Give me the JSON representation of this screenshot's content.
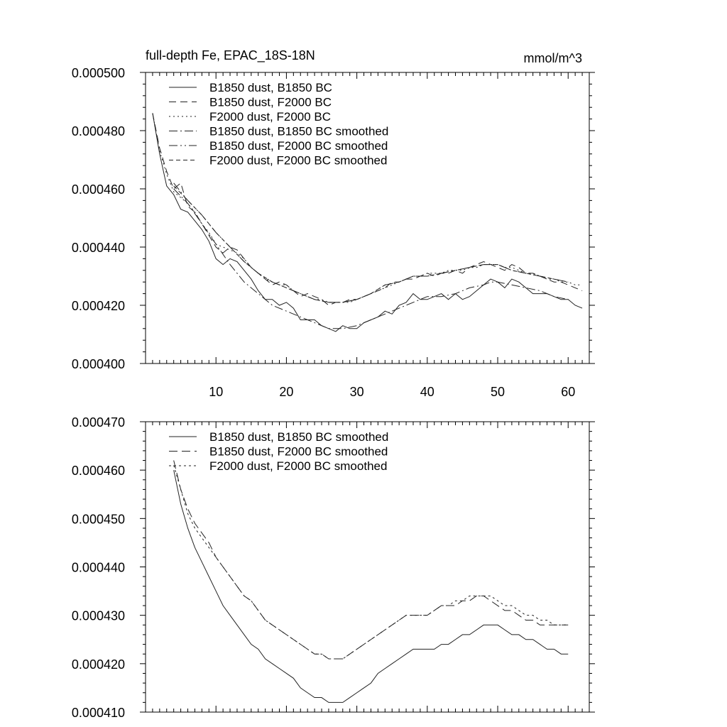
{
  "chart_data": [
    {
      "type": "line",
      "title": "full-depth Fe, EPAC_18S-18N",
      "units": "mmol/m^3",
      "xlim": [
        0,
        63
      ],
      "ylim": [
        0.0004,
        0.0005
      ],
      "x_ticks": [
        10,
        20,
        30,
        40,
        50,
        60
      ],
      "x_tick_labels": [
        "10",
        "20",
        "30",
        "40",
        "50",
        "60"
      ],
      "y_ticks": [
        0.0004,
        0.00042,
        0.00044,
        0.00046,
        0.00048,
        0.0005
      ],
      "y_tick_labels": [
        "0.000400",
        "0.000420",
        "0.000440",
        "0.000460",
        "0.000480",
        "0.000500"
      ],
      "legend_position": "top-left",
      "series": [
        {
          "name": "B1850 dust, B1850 BC",
          "dash": "",
          "x": [
            1,
            2,
            3,
            4,
            5,
            6,
            7,
            8,
            9,
            10,
            11,
            12,
            13,
            14,
            15,
            16,
            17,
            18,
            19,
            20,
            21,
            22,
            23,
            24,
            25,
            26,
            27,
            28,
            29,
            30,
            31,
            32,
            33,
            34,
            35,
            36,
            37,
            38,
            39,
            40,
            41,
            42,
            43,
            44,
            45,
            46,
            47,
            48,
            49,
            50,
            51,
            52,
            53,
            54,
            55,
            56,
            57,
            58,
            59,
            60,
            61,
            62
          ],
          "y": [
            0.000486,
            0.000472,
            0.000461,
            0.000458,
            0.000453,
            0.000452,
            0.000449,
            0.000446,
            0.000442,
            0.000436,
            0.000434,
            0.000436,
            0.000435,
            0.000432,
            0.000429,
            0.000425,
            0.000422,
            0.000422,
            0.00042,
            0.000421,
            0.000419,
            0.000415,
            0.000415,
            0.000415,
            0.000413,
            0.000412,
            0.000411,
            0.000413,
            0.000412,
            0.000412,
            0.000414,
            0.000415,
            0.000416,
            0.000418,
            0.000417,
            0.00042,
            0.000421,
            0.000424,
            0.000422,
            0.000422,
            0.000423,
            0.000424,
            0.000422,
            0.000424,
            0.000422,
            0.000423,
            0.000425,
            0.000427,
            0.000429,
            0.000428,
            0.000426,
            0.000429,
            0.000428,
            0.000426,
            0.000424,
            0.000424,
            0.000424,
            0.000423,
            0.000422,
            0.000422,
            0.00042,
            0.000419
          ]
        },
        {
          "name": "B1850 dust, F2000 BC",
          "dash": "10,6",
          "x": [
            1,
            2,
            3,
            4,
            5,
            6,
            7,
            8,
            9,
            10,
            11,
            12,
            13,
            14,
            15,
            16,
            17,
            18,
            19,
            20,
            21,
            22,
            23,
            24,
            25,
            26,
            27,
            28,
            29,
            30,
            31,
            32,
            33,
            34,
            35,
            36,
            37,
            38,
            39,
            40,
            41,
            42,
            43,
            44,
            45,
            46,
            47,
            48,
            49,
            50,
            51,
            52,
            53,
            54,
            55,
            56,
            57,
            58,
            59,
            60,
            61,
            62
          ],
          "y": [
            0.000486,
            0.000474,
            0.000466,
            0.00046,
            0.000462,
            0.000454,
            0.000452,
            0.000448,
            0.000444,
            0.00044,
            0.000438,
            0.00044,
            0.000439,
            0.000436,
            0.000433,
            0.000431,
            0.000429,
            0.000427,
            0.000428,
            0.000427,
            0.000425,
            0.000423,
            0.000424,
            0.000423,
            0.000422,
            0.00042,
            0.000421,
            0.000421,
            0.000422,
            0.000422,
            0.000423,
            0.000424,
            0.000425,
            0.000426,
            0.000428,
            0.000428,
            0.000429,
            0.000429,
            0.00043,
            0.000431,
            0.00043,
            0.000431,
            0.000431,
            0.000432,
            0.000431,
            0.000433,
            0.000434,
            0.000435,
            0.000434,
            0.000433,
            0.000432,
            0.000434,
            0.000433,
            0.000431,
            0.000431,
            0.00043,
            0.000429,
            0.000428,
            0.000428,
            0.000427,
            0.000426,
            0.000425
          ]
        },
        {
          "name": "F2000 dust, F2000 BC",
          "dash": "2,4",
          "x": [
            1,
            2,
            3,
            4,
            5,
            6,
            7,
            8,
            9,
            10,
            11,
            12,
            13,
            14,
            15,
            16,
            17,
            18,
            19,
            20,
            21,
            22,
            23,
            24,
            25,
            26,
            27,
            28,
            29,
            30,
            31,
            32,
            33,
            34,
            35,
            36,
            37,
            38,
            39,
            40,
            41,
            42,
            43,
            44,
            45,
            46,
            47,
            48,
            49,
            50,
            51,
            52,
            53,
            54,
            55,
            56,
            57,
            58,
            59,
            60,
            61,
            62
          ],
          "y": [
            0.000486,
            0.000473,
            0.000465,
            0.000459,
            0.000457,
            0.000455,
            0.000452,
            0.000448,
            0.000445,
            0.000441,
            0.00044,
            0.000439,
            0.000438,
            0.000436,
            0.000433,
            0.000431,
            0.000429,
            0.000428,
            0.000427,
            0.000427,
            0.000425,
            0.000424,
            0.000423,
            0.000422,
            0.000422,
            0.000421,
            0.000421,
            0.000421,
            0.000421,
            0.000422,
            0.000423,
            0.000424,
            0.000425,
            0.000426,
            0.000427,
            0.000428,
            0.000429,
            0.00043,
            0.00043,
            0.000431,
            0.000431,
            0.000431,
            0.000432,
            0.000432,
            0.000432,
            0.000433,
            0.000433,
            0.000434,
            0.000434,
            0.000434,
            0.000433,
            0.000433,
            0.000432,
            0.000431,
            0.000431,
            0.00043,
            0.000429,
            0.000429,
            0.000428,
            0.000428,
            0.000427,
            0.000427
          ]
        },
        {
          "name": "B1850 dust, B1850 BC smoothed",
          "dash": "12,4,2,4",
          "x": [
            4,
            6,
            8,
            10,
            12,
            14,
            16,
            18,
            20,
            22,
            24,
            26,
            27,
            28,
            30,
            32,
            34,
            36,
            38,
            40,
            42,
            44,
            46,
            48,
            49,
            50,
            52,
            54,
            56,
            58,
            60
          ],
          "y": [
            0.00046,
            0.000455,
            0.000448,
            0.000441,
            0.000434,
            0.000428,
            0.000424,
            0.00042,
            0.000418,
            0.000416,
            0.000414,
            0.000412,
            0.000412,
            0.000412,
            0.000413,
            0.000415,
            0.000417,
            0.000419,
            0.000421,
            0.000423,
            0.000423,
            0.000424,
            0.000426,
            0.000427,
            0.000428,
            0.000428,
            0.000427,
            0.000426,
            0.000425,
            0.000423,
            0.000422
          ]
        },
        {
          "name": "B1850 dust, F2000 BC smoothed",
          "dash": "12,4,2,4,2,4",
          "x": [
            4,
            6,
            8,
            10,
            12,
            14,
            16,
            18,
            20,
            22,
            24,
            26,
            27,
            28,
            30,
            32,
            34,
            36,
            38,
            40,
            42,
            44,
            46,
            48,
            49,
            50,
            52,
            54,
            56,
            58,
            60
          ],
          "y": [
            0.000462,
            0.000456,
            0.000451,
            0.000445,
            0.00044,
            0.000435,
            0.000431,
            0.000428,
            0.000426,
            0.000424,
            0.000422,
            0.000421,
            0.000421,
            0.000421,
            0.000422,
            0.000424,
            0.000427,
            0.000428,
            0.00043,
            0.00043,
            0.000431,
            0.000432,
            0.000433,
            0.000434,
            0.000434,
            0.000434,
            0.000432,
            0.000431,
            0.00043,
            0.000429,
            0.000428
          ]
        },
        {
          "name": "F2000 dust, F2000 BC smoothed",
          "dash": "6,4",
          "x": [
            4,
            6,
            8,
            10,
            12,
            14,
            16,
            18,
            20,
            22,
            24,
            26,
            27,
            28,
            30,
            32,
            34,
            36,
            38,
            40,
            42,
            44,
            46,
            48,
            49,
            50,
            52,
            54,
            56,
            58,
            60
          ],
          "y": [
            0.000461,
            0.000456,
            0.000451,
            0.000445,
            0.00044,
            0.000435,
            0.000431,
            0.000428,
            0.000426,
            0.000424,
            0.000422,
            0.000421,
            0.000421,
            0.000421,
            0.000422,
            0.000424,
            0.000427,
            0.000428,
            0.00043,
            0.00043,
            0.000431,
            0.000432,
            0.000433,
            0.000434,
            0.000434,
            0.000434,
            0.000432,
            0.000431,
            0.00043,
            0.000429,
            0.000428
          ]
        }
      ]
    },
    {
      "type": "line",
      "title": "",
      "xlim": [
        0,
        63
      ],
      "ylim": [
        0.00041,
        0.00047
      ],
      "x_ticks": [
        10,
        20,
        30,
        40,
        50,
        60
      ],
      "y_ticks": [
        0.00041,
        0.00042,
        0.00043,
        0.00044,
        0.00045,
        0.00046,
        0.00047
      ],
      "y_tick_labels": [
        "0.000410",
        "0.000420",
        "0.000430",
        "0.000440",
        "0.000450",
        "0.000460",
        "0.000470"
      ],
      "legend_position": "top-left",
      "series": [
        {
          "name": "B1850 dust, B1850 BC smoothed",
          "dash": "",
          "x": [
            4,
            5,
            6,
            7,
            8,
            9,
            10,
            11,
            12,
            13,
            14,
            15,
            16,
            17,
            18,
            19,
            20,
            21,
            22,
            23,
            24,
            25,
            26,
            27,
            28,
            29,
            30,
            31,
            32,
            33,
            34,
            35,
            36,
            37,
            38,
            39,
            40,
            41,
            42,
            43,
            44,
            45,
            46,
            47,
            48,
            49,
            50,
            51,
            52,
            53,
            54,
            55,
            56,
            57,
            58,
            59,
            60
          ],
          "y": [
            0.00046,
            0.000453,
            0.000448,
            0.000444,
            0.000441,
            0.000438,
            0.000435,
            0.000432,
            0.00043,
            0.000428,
            0.000426,
            0.000424,
            0.000423,
            0.000421,
            0.00042,
            0.000419,
            0.000418,
            0.000417,
            0.000415,
            0.000414,
            0.000413,
            0.000413,
            0.000412,
            0.000412,
            0.000412,
            0.000413,
            0.000414,
            0.000415,
            0.000416,
            0.000418,
            0.000419,
            0.00042,
            0.000421,
            0.000422,
            0.000423,
            0.000423,
            0.000423,
            0.000423,
            0.000424,
            0.000424,
            0.000425,
            0.000426,
            0.000426,
            0.000427,
            0.000428,
            0.000428,
            0.000428,
            0.000427,
            0.000426,
            0.000426,
            0.000425,
            0.000425,
            0.000424,
            0.000423,
            0.000423,
            0.000422,
            0.000422
          ]
        },
        {
          "name": "B1850 dust, F2000 BC smoothed",
          "dash": "12,6",
          "x": [
            4,
            5,
            6,
            7,
            8,
            9,
            10,
            11,
            12,
            13,
            14,
            15,
            16,
            17,
            18,
            19,
            20,
            21,
            22,
            23,
            24,
            25,
            26,
            27,
            28,
            29,
            30,
            31,
            32,
            33,
            34,
            35,
            36,
            37,
            38,
            39,
            40,
            41,
            42,
            43,
            44,
            45,
            46,
            47,
            48,
            49,
            50,
            51,
            52,
            53,
            54,
            55,
            56,
            57,
            58,
            59,
            60
          ],
          "y": [
            0.000462,
            0.000456,
            0.000452,
            0.000449,
            0.000447,
            0.000445,
            0.000442,
            0.00044,
            0.000438,
            0.000436,
            0.000434,
            0.000433,
            0.000431,
            0.000429,
            0.000428,
            0.000427,
            0.000426,
            0.000425,
            0.000424,
            0.000423,
            0.000422,
            0.000422,
            0.000421,
            0.000421,
            0.000421,
            0.000422,
            0.000423,
            0.000424,
            0.000425,
            0.000426,
            0.000427,
            0.000428,
            0.000429,
            0.00043,
            0.00043,
            0.00043,
            0.00043,
            0.000431,
            0.000432,
            0.000432,
            0.000432,
            0.000433,
            0.000433,
            0.000434,
            0.000434,
            0.000433,
            0.000432,
            0.000431,
            0.000431,
            0.00043,
            0.000429,
            0.000429,
            0.000428,
            0.000428,
            0.000428,
            0.000428,
            0.000428
          ]
        },
        {
          "name": "F2000 dust, F2000 BC smoothed",
          "dash": "3,4",
          "x": [
            4,
            5,
            6,
            7,
            8,
            9,
            10,
            11,
            12,
            13,
            14,
            15,
            16,
            17,
            18,
            19,
            20,
            21,
            22,
            23,
            24,
            25,
            26,
            27,
            28,
            29,
            30,
            31,
            32,
            33,
            34,
            35,
            36,
            37,
            38,
            39,
            40,
            41,
            42,
            43,
            44,
            45,
            46,
            47,
            48,
            49,
            50,
            51,
            52,
            53,
            54,
            55,
            56,
            57,
            58,
            59,
            60
          ],
          "y": [
            0.000461,
            0.000456,
            0.000451,
            0.000448,
            0.000446,
            0.000444,
            0.000442,
            0.00044,
            0.000438,
            0.000436,
            0.000434,
            0.000433,
            0.000431,
            0.000429,
            0.000428,
            0.000427,
            0.000426,
            0.000425,
            0.000424,
            0.000423,
            0.000422,
            0.000422,
            0.000421,
            0.000421,
            0.000421,
            0.000422,
            0.000423,
            0.000424,
            0.000425,
            0.000426,
            0.000427,
            0.000428,
            0.000429,
            0.00043,
            0.00043,
            0.00043,
            0.00043,
            0.000431,
            0.000432,
            0.000432,
            0.000433,
            0.000433,
            0.000434,
            0.000434,
            0.000434,
            0.000434,
            0.000433,
            0.000432,
            0.000432,
            0.000431,
            0.00043,
            0.00043,
            0.000429,
            0.000429,
            0.000428,
            0.000428,
            0.000428
          ]
        }
      ]
    }
  ]
}
